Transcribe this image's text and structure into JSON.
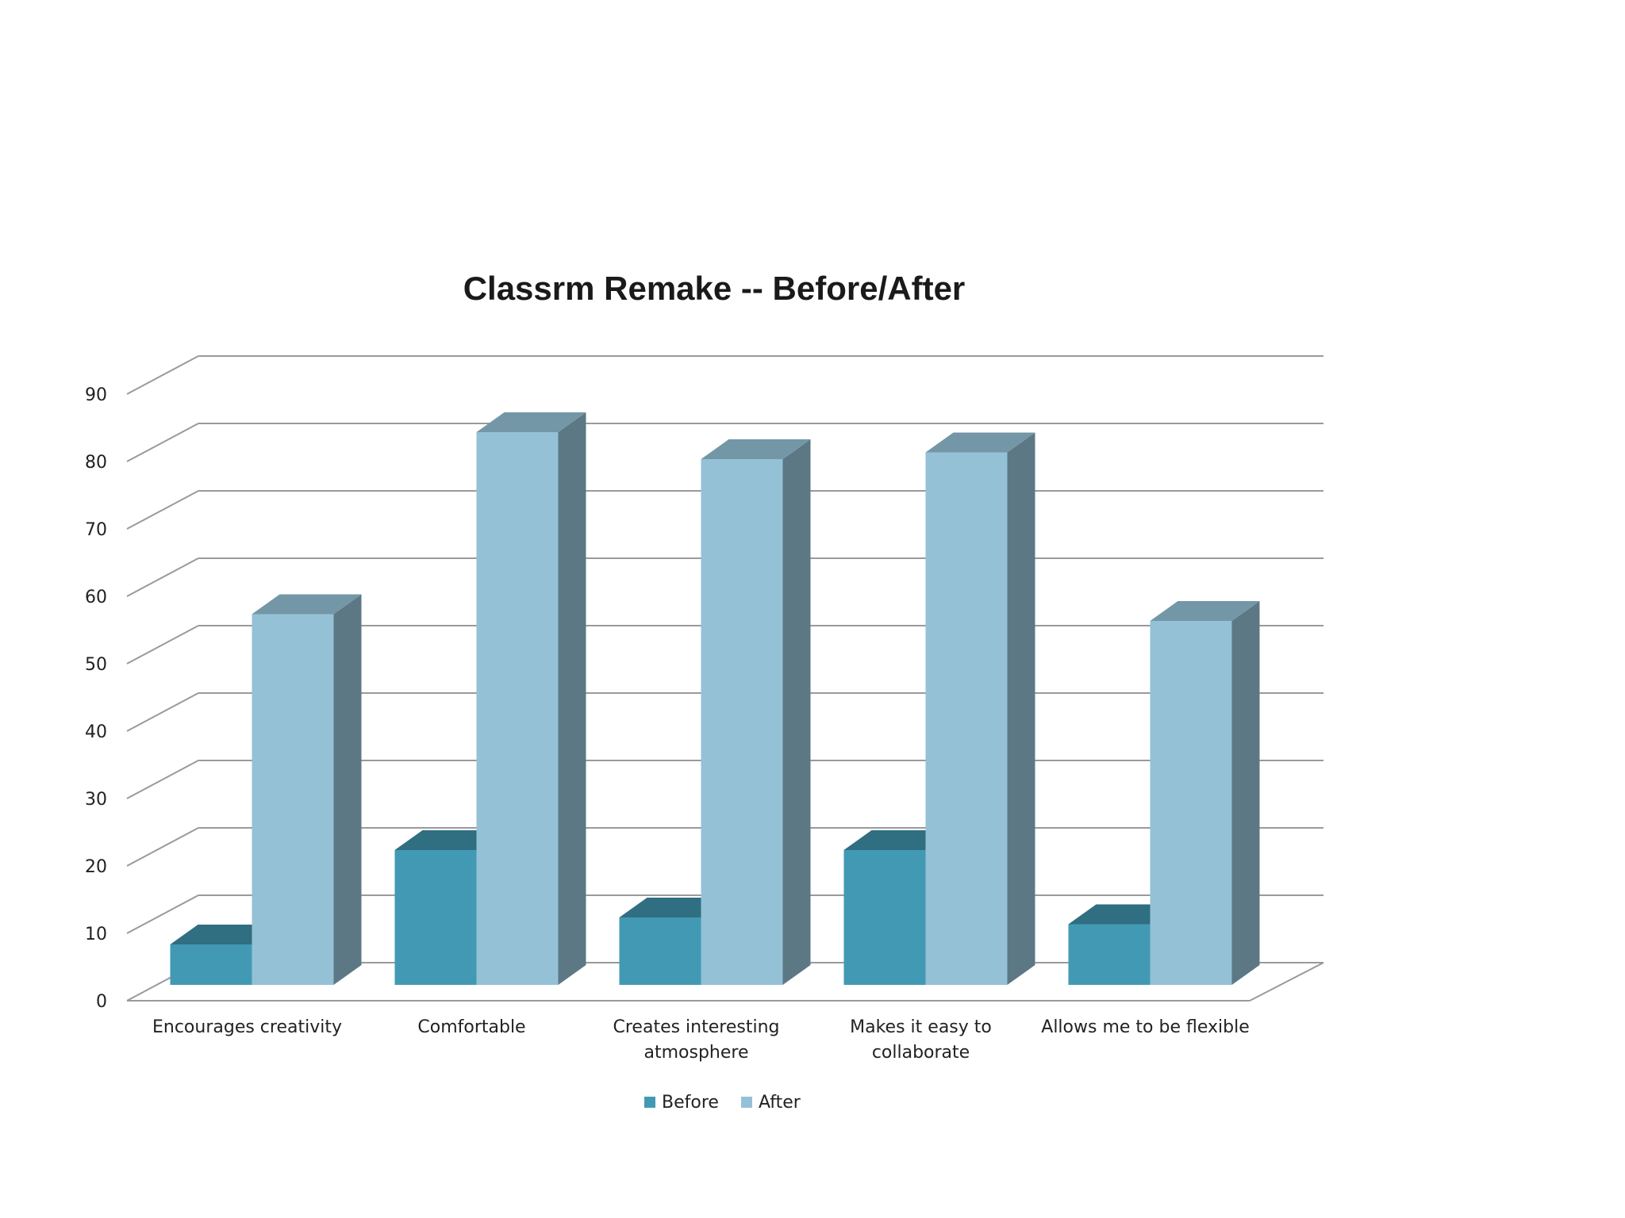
{
  "chart_data": {
    "type": "bar",
    "title": "Classrm Remake -- Before/After",
    "xlabel": "",
    "ylabel": "",
    "ylim": [
      0,
      90
    ],
    "yticks": [
      0,
      10,
      20,
      30,
      40,
      50,
      60,
      70,
      80,
      90
    ],
    "grid": true,
    "legend_position": "bottom",
    "categories": [
      "Encourages creativity",
      "Comfortable",
      "Creates interesting atmosphere",
      "Makes it easy to collaborate",
      "Allows me to be flexible"
    ],
    "category_lines": [
      [
        "Encourages creativity"
      ],
      [
        "Comfortable"
      ],
      [
        "Creates interesting",
        "atmosphere"
      ],
      [
        "Makes it easy to",
        "collaborate"
      ],
      [
        "Allows me to be flexible"
      ]
    ],
    "series": [
      {
        "name": "Before",
        "values": [
          6,
          20,
          10,
          20,
          9
        ],
        "color": "#4299b4"
      },
      {
        "name": "After",
        "values": [
          55,
          82,
          78,
          79,
          54
        ],
        "color": "#94c1d6"
      }
    ]
  }
}
